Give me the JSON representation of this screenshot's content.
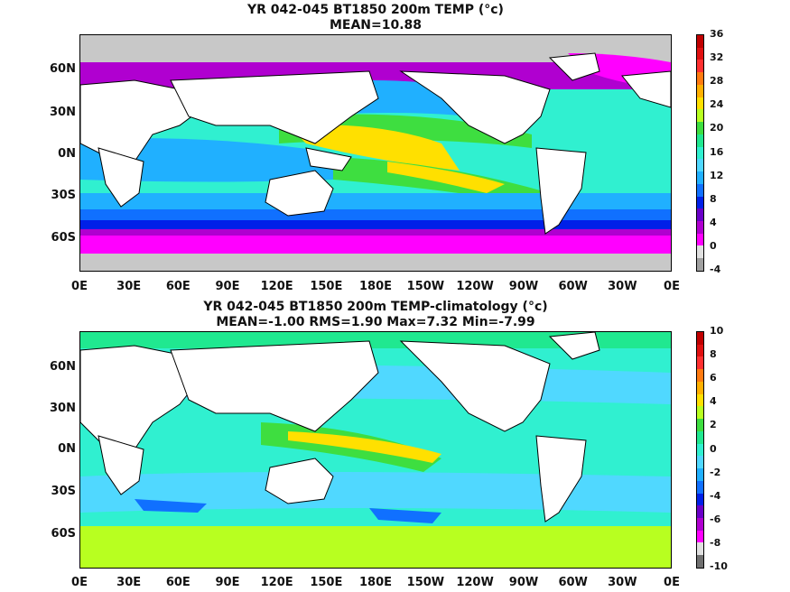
{
  "panels": [
    {
      "title_line1": "YR 042-045 BT1850 200m TEMP (°c)",
      "title_line2": "MEAN=10.88",
      "colorbar_labels": [
        "36",
        "32",
        "28",
        "24",
        "20",
        "16",
        "12",
        "8",
        "4",
        "0",
        "-4"
      ],
      "colorbar_colors": [
        "#c00000",
        "#e01010",
        "#ff3030",
        "#ff7a10",
        "#ffb000",
        "#ffe000",
        "#b8ff20",
        "#3ede40",
        "#20e890",
        "#30f0d0",
        "#50d8ff",
        "#20b0ff",
        "#1070ff",
        "#0020e8",
        "#6a00c8",
        "#b000d0",
        "#ff00ff",
        "#e0e0e0",
        "#a0a0a0"
      ]
    },
    {
      "title_line1": "YR 042-045 BT1850 200m TEMP-climatology (°c)",
      "title_line2": "MEAN=-1.00   RMS=1.90   Max=7.32   Min=-7.99",
      "colorbar_labels": [
        "10",
        "8",
        "6",
        "4",
        "2",
        "0",
        "-2",
        "-4",
        "-6",
        "-8",
        "-10"
      ],
      "colorbar_colors": [
        "#c00000",
        "#e01010",
        "#ff3030",
        "#ff7a10",
        "#ffb000",
        "#ffe000",
        "#b8ff20",
        "#3ede40",
        "#20e890",
        "#30f0d0",
        "#50d8ff",
        "#20b0ff",
        "#1070ff",
        "#0020e8",
        "#6a00c8",
        "#b000d0",
        "#ff00ff",
        "#e0e0e0",
        "#707070"
      ]
    }
  ],
  "lat_labels": [
    "60N",
    "30N",
    "0N",
    "30S",
    "60S"
  ],
  "lon_labels": [
    "0E",
    "30E",
    "60E",
    "90E",
    "120E",
    "150E",
    "180E",
    "150W",
    "120W",
    "90W",
    "60W",
    "30W",
    "0E"
  ]
}
